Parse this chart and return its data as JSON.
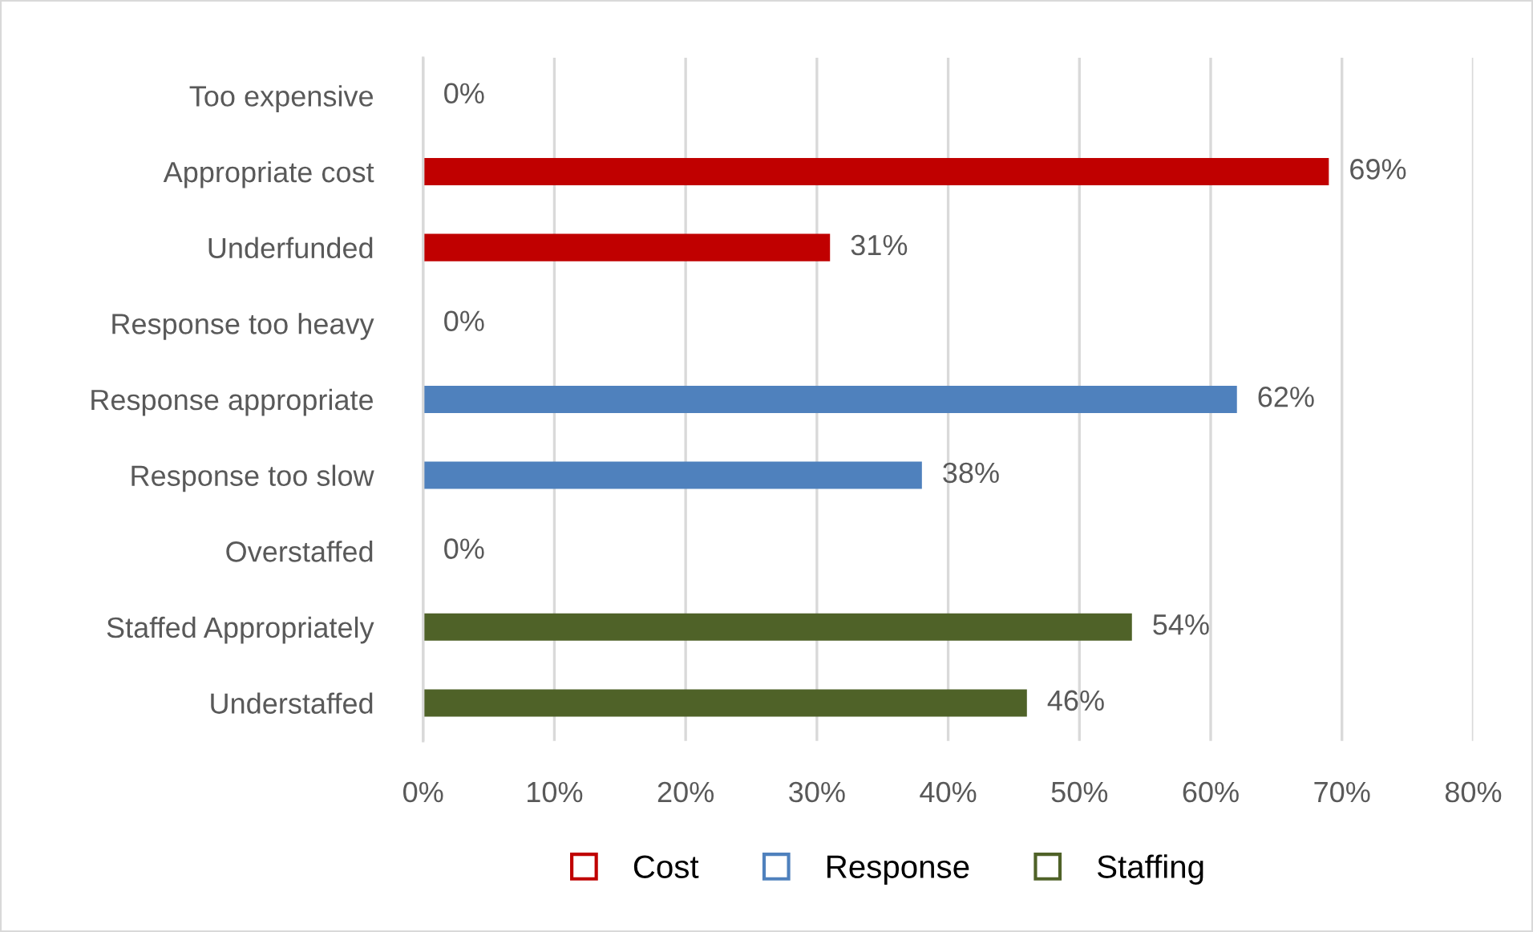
{
  "chart_data": {
    "type": "bar",
    "orientation": "horizontal",
    "categories": [
      "Too expensive",
      "Appropriate cost",
      "Underfunded",
      "Response too heavy",
      "Response appropriate",
      "Response too slow",
      "Overstaffed",
      "Staffed Appropriately",
      "Understaffed"
    ],
    "series": [
      {
        "name": "Cost",
        "color": "#c00000",
        "values": [
          0,
          69,
          31,
          null,
          null,
          null,
          null,
          null,
          null
        ],
        "value_labels": [
          "0%",
          "69%",
          "31%",
          null,
          null,
          null,
          null,
          null,
          null
        ]
      },
      {
        "name": "Response",
        "color": "#4f81bd",
        "values": [
          null,
          null,
          null,
          0,
          62,
          38,
          null,
          null,
          null
        ],
        "value_labels": [
          null,
          null,
          null,
          "0%",
          "62%",
          "38%",
          null,
          null,
          null
        ]
      },
      {
        "name": "Staffing",
        "color": "#4f6228",
        "values": [
          null,
          null,
          null,
          null,
          null,
          null,
          0,
          54,
          46
        ],
        "value_labels": [
          null,
          null,
          null,
          null,
          null,
          null,
          "0%",
          "54%",
          "46%"
        ]
      }
    ],
    "xlim": [
      0,
      80
    ],
    "xticks": [
      {
        "value": 0,
        "label": "0%"
      },
      {
        "value": 10,
        "label": "10%"
      },
      {
        "value": 20,
        "label": "20%"
      },
      {
        "value": 30,
        "label": "30%"
      },
      {
        "value": 40,
        "label": "40%"
      },
      {
        "value": 50,
        "label": "50%"
      },
      {
        "value": 60,
        "label": "60%"
      },
      {
        "value": 70,
        "label": "70%"
      },
      {
        "value": 80,
        "label": "80%"
      }
    ],
    "grid": "x",
    "legend": "bottom"
  }
}
